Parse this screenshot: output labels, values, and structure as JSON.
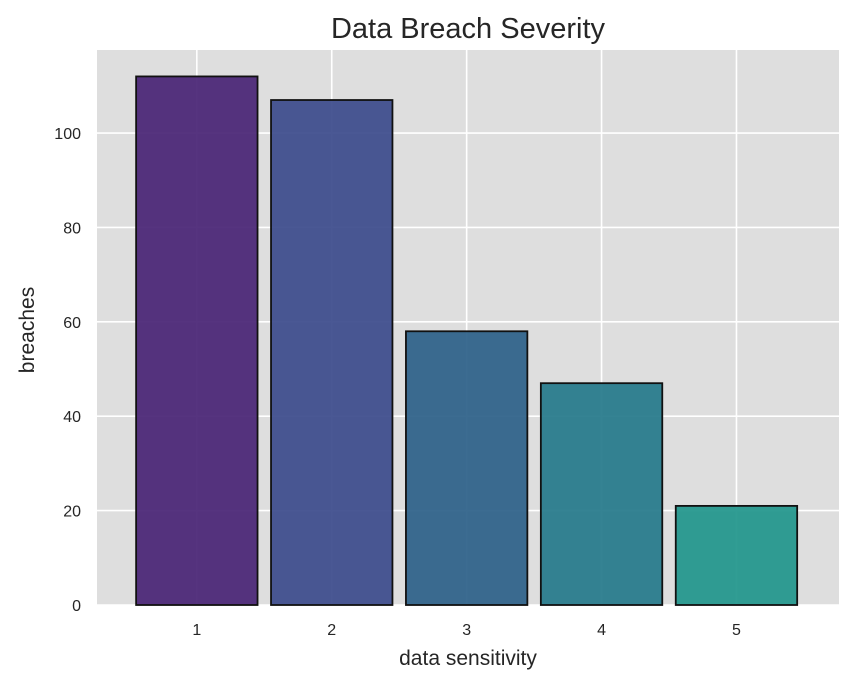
{
  "chart_data": {
    "type": "bar",
    "title": "Data Breach Severity",
    "xlabel": "data sensitivity",
    "ylabel": "breaches",
    "categories": [
      "1",
      "2",
      "3",
      "4",
      "5"
    ],
    "values": [
      112,
      107,
      58,
      47,
      21
    ],
    "colors": [
      "#482374",
      "#3b4a8b",
      "#2b5f88",
      "#24788a",
      "#1f958b"
    ],
    "yticks": [
      0,
      20,
      40,
      60,
      80,
      100
    ],
    "ylim": [
      0,
      117.6
    ],
    "grid": true,
    "legend": "none",
    "background_color": "#dedede",
    "grid_color": "#ffffff",
    "bar_edge_color": "#111111"
  }
}
